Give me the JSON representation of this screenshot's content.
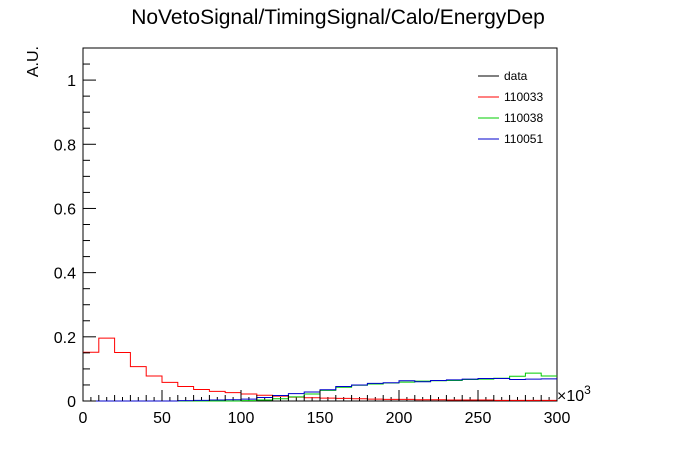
{
  "chart_data": {
    "type": "line",
    "title": "NoVetoSignal/TimingSignal/Calo/EnergyDep",
    "ylabel": "A.U.",
    "xlabel": "",
    "x_multiplier": "×10",
    "x_multiplier_exp": "3",
    "xlim": [
      0,
      300
    ],
    "ylim": [
      0,
      1.1
    ],
    "x_ticks": [
      0,
      50,
      100,
      150,
      200,
      250,
      300
    ],
    "x_tick_labels": [
      "0",
      "50",
      "100",
      "150",
      "200",
      "250",
      "300"
    ],
    "y_ticks": [
      0,
      0.2,
      0.4,
      0.6,
      0.8,
      1
    ],
    "y_tick_labels": [
      "0",
      "0.2",
      "0.4",
      "0.6",
      "0.8",
      "1"
    ],
    "bin_edges": [
      0,
      10,
      20,
      30,
      40,
      50,
      60,
      70,
      80,
      90,
      100,
      110,
      120,
      130,
      140,
      150,
      160,
      170,
      180,
      190,
      200,
      210,
      220,
      230,
      240,
      250,
      260,
      270,
      280,
      290,
      300
    ],
    "legend_position": "top-right",
    "series": [
      {
        "name": "data",
        "color": "#000000",
        "style": "markers",
        "values": [
          0,
          0,
          0,
          0,
          0,
          0,
          0,
          0,
          0,
          0,
          0,
          0,
          0,
          0,
          0,
          0,
          0,
          0,
          0,
          0,
          0,
          0,
          0,
          0,
          0,
          0,
          0,
          0,
          0,
          0
        ]
      },
      {
        "name": "110033",
        "color": "#ff0000",
        "style": "hist",
        "values": [
          0.152,
          0.196,
          0.151,
          0.107,
          0.078,
          0.058,
          0.045,
          0.036,
          0.03,
          0.026,
          0.022,
          0.018,
          0.015,
          0.012,
          0.01,
          0.009,
          0.008,
          0.007,
          0.006,
          0.005,
          0.005,
          0.004,
          0.004,
          0.003,
          0.003,
          0.003,
          0.002,
          0.002,
          0.002,
          0.002
        ]
      },
      {
        "name": "110038",
        "color": "#00cc00",
        "style": "hist",
        "values": [
          0,
          0,
          0,
          0,
          0,
          0,
          0,
          0,
          0,
          0,
          0.001,
          0.003,
          0.007,
          0.013,
          0.022,
          0.033,
          0.043,
          0.049,
          0.053,
          0.056,
          0.059,
          0.062,
          0.063,
          0.064,
          0.067,
          0.068,
          0.071,
          0.077,
          0.087,
          0.078
        ]
      },
      {
        "name": "110051",
        "color": "#0000cc",
        "style": "hist",
        "values": [
          0,
          0,
          0,
          0,
          0,
          0,
          0.001,
          0.002,
          0.003,
          0.004,
          0.006,
          0.011,
          0.017,
          0.023,
          0.028,
          0.035,
          0.045,
          0.05,
          0.055,
          0.057,
          0.063,
          0.06,
          0.064,
          0.066,
          0.068,
          0.07,
          0.07,
          0.067,
          0.068,
          0.069
        ]
      }
    ]
  }
}
